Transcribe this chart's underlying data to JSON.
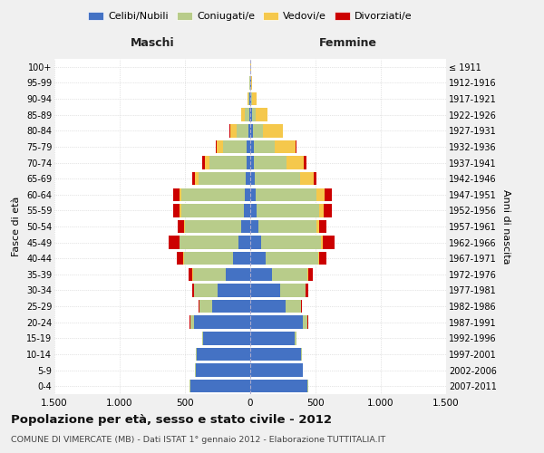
{
  "age_groups": [
    "0-4",
    "5-9",
    "10-14",
    "15-19",
    "20-24",
    "25-29",
    "30-34",
    "35-39",
    "40-44",
    "45-49",
    "50-54",
    "55-59",
    "60-64",
    "65-69",
    "70-74",
    "75-79",
    "80-84",
    "85-89",
    "90-94",
    "95-99",
    "100+"
  ],
  "birth_years": [
    "2007-2011",
    "2002-2006",
    "1997-2001",
    "1992-1996",
    "1987-1991",
    "1982-1986",
    "1977-1981",
    "1972-1976",
    "1967-1971",
    "1962-1966",
    "1957-1961",
    "1952-1956",
    "1947-1951",
    "1942-1946",
    "1937-1941",
    "1932-1936",
    "1927-1931",
    "1922-1926",
    "1917-1921",
    "1912-1916",
    "≤ 1911"
  ],
  "male_celibe": [
    460,
    420,
    410,
    360,
    430,
    290,
    250,
    190,
    130,
    90,
    70,
    50,
    45,
    35,
    30,
    25,
    15,
    10,
    5,
    3,
    2
  ],
  "male_coniugato": [
    2,
    2,
    5,
    10,
    30,
    100,
    180,
    250,
    380,
    450,
    430,
    480,
    480,
    360,
    280,
    180,
    90,
    35,
    10,
    3,
    1
  ],
  "male_vedovo": [
    0,
    0,
    0,
    0,
    0,
    1,
    1,
    2,
    3,
    5,
    8,
    10,
    15,
    30,
    40,
    50,
    50,
    25,
    8,
    2,
    0
  ],
  "male_divorziato": [
    0,
    0,
    0,
    1,
    2,
    5,
    15,
    30,
    50,
    80,
    50,
    50,
    50,
    20,
    20,
    8,
    5,
    2,
    1,
    0,
    0
  ],
  "female_celibe": [
    440,
    400,
    390,
    340,
    400,
    270,
    230,
    170,
    120,
    85,
    65,
    50,
    40,
    35,
    30,
    25,
    18,
    12,
    8,
    4,
    2
  ],
  "female_coniugato": [
    2,
    2,
    5,
    15,
    40,
    120,
    195,
    270,
    400,
    460,
    440,
    480,
    470,
    350,
    250,
    160,
    80,
    30,
    8,
    2,
    0
  ],
  "female_vedovo": [
    0,
    0,
    0,
    0,
    0,
    1,
    2,
    3,
    5,
    10,
    20,
    35,
    60,
    100,
    130,
    160,
    150,
    90,
    35,
    10,
    3
  ],
  "female_divorziato": [
    0,
    0,
    0,
    1,
    3,
    8,
    18,
    35,
    60,
    90,
    60,
    60,
    55,
    25,
    20,
    10,
    5,
    3,
    1,
    0,
    0
  ],
  "color_celibe": "#4472c4",
  "color_coniugato": "#b8cc8a",
  "color_vedovo": "#f5c84c",
  "color_divorziato": "#cc0000",
  "title": "Popolazione per età, sesso e stato civile - 2012",
  "subtitle": "COMUNE DI VIMERCATE (MB) - Dati ISTAT 1° gennaio 2012 - Elaborazione TUTTITALIA.IT",
  "xlabel_left": "Maschi",
  "xlabel_right": "Femmine",
  "ylabel_left": "Fasce di età",
  "ylabel_right": "Anni di nascita",
  "xlim": 1500,
  "legend_labels": [
    "Celibi/Nubili",
    "Coniugati/e",
    "Vedovi/e",
    "Divorziati/e"
  ],
  "bg_color": "#f0f0f0",
  "plot_bg": "#ffffff"
}
